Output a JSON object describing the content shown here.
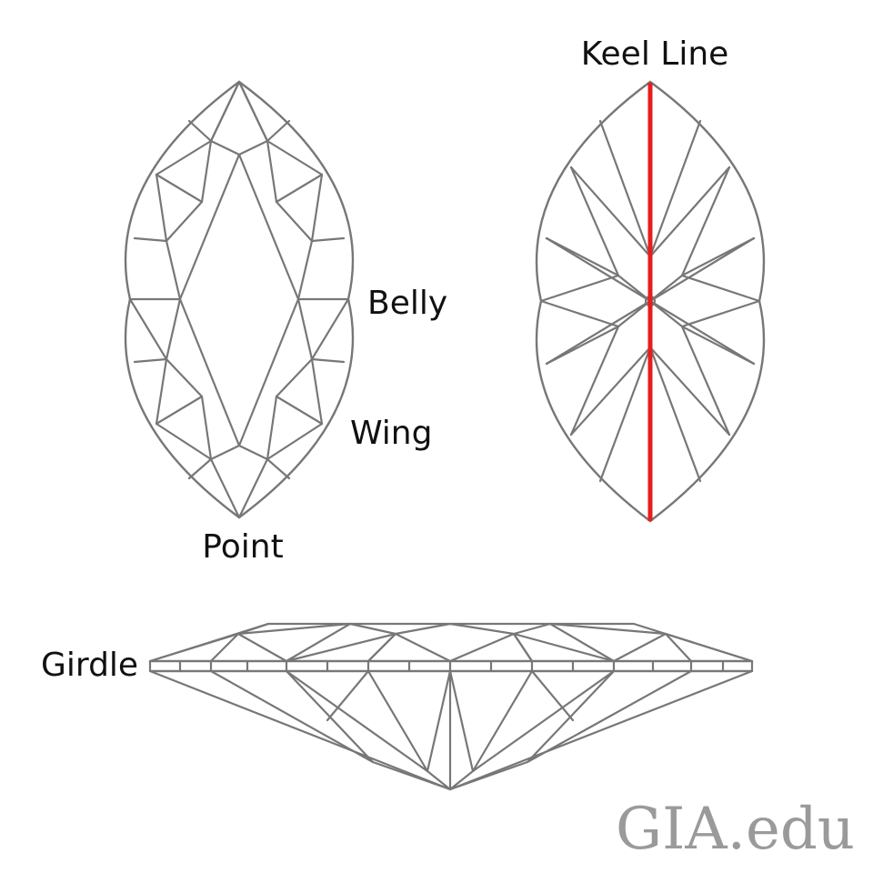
{
  "labels": {
    "keel_line": "Keel Line",
    "belly": "Belly",
    "wing": "Wing",
    "point": "Point",
    "girdle": "Girdle"
  },
  "watermark": "GIA.edu",
  "colors": {
    "facet_lines": "#777777",
    "keel_line": "#e81c1c",
    "text": "#111111",
    "watermark": "#9a9a9a"
  }
}
